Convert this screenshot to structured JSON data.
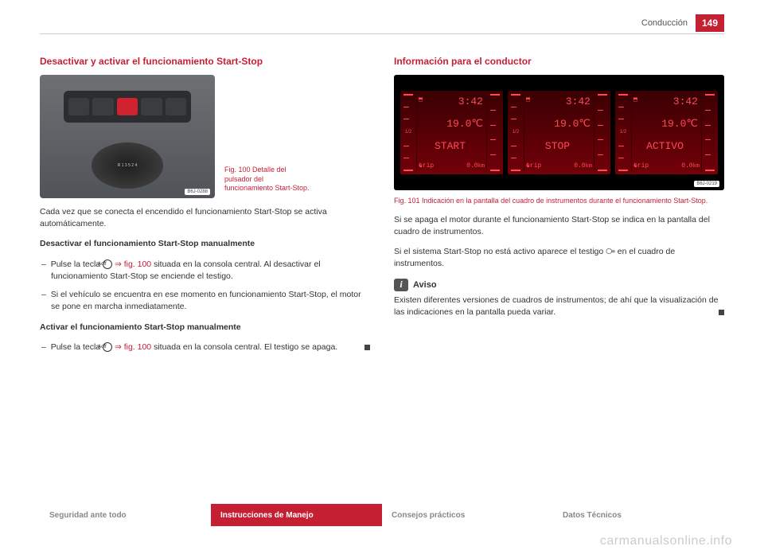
{
  "header": {
    "section": "Conducción",
    "page": "149"
  },
  "left": {
    "title": "Desactivar y activar el funcionamiento Start-Stop",
    "fig_caption": "Fig. 100  Detalle del pulsador del funcionamiento Start-Stop.",
    "fig_badge": "B6J-0288",
    "shifter_text": "R 1 3 5\n  2 4",
    "p1": "Cada vez que se conecta el encendido el funcionamiento Start-Stop se activa automáticamente.",
    "h_deact": "Desactivar el funcionamiento Start-Stop manualmente",
    "deact_1a": "Pulse la tecla ",
    "deact_1_ref": "⇒ fig. 100",
    "deact_1b": " situada en la consola central. Al desactivar el funcionamiento Start-Stop se enciende el testigo.",
    "deact_2": "Si el vehículo se encuentra en ese momento en funcionamiento Start-Stop, el motor se pone en marcha inmediatamente.",
    "h_act": "Activar el funcionamiento Start-Stop manualmente",
    "act_1a": "Pulse la tecla ",
    "act_1_ref": "⇒ fig. 100",
    "act_1b": " situada en la consola central. El testigo se apaga.",
    "icon_label": "Aoff"
  },
  "right": {
    "title": "Información para el conductor",
    "fig_badge": "B6J-0219",
    "clusters": [
      {
        "time": "3:42",
        "temp": "19.0℃",
        "status": "START",
        "trip": "0.0",
        "unit": "km"
      },
      {
        "time": "3:42",
        "temp": "19.0℃",
        "status": "STOP",
        "trip": "0.0",
        "unit": "km"
      },
      {
        "time": "3:42",
        "temp": "19.0℃",
        "status": "ACTIVO",
        "trip": "0.0",
        "unit": "km"
      }
    ],
    "gauge_half": "1/2",
    "trip_label": "trip",
    "fig_caption": "Fig. 101  Indicación en la pantalla del cuadro de instrumentos durante el funcionamiento Start-Stop.",
    "p1": "Si se apaga el motor durante el funcionamiento Start-Stop se indica en la pantalla del cuadro de instrumentos.",
    "p2a": "Si el sistema Start-Stop no está activo aparece el testigo ",
    "p2b": " en el cuadro de instrumentos.",
    "aviso_label": "Aviso",
    "aviso_text": "Existen diferentes versiones de cuadros de instrumentos; de ahí que la visualización de las indicaciones en la pantalla pueda variar."
  },
  "footer": {
    "tabs": [
      "Seguridad ante todo",
      "Instrucciones de Manejo",
      "Consejos prácticos",
      "Datos Técnicos"
    ],
    "active_index": 1
  },
  "watermark": "carmanualsonline.info"
}
